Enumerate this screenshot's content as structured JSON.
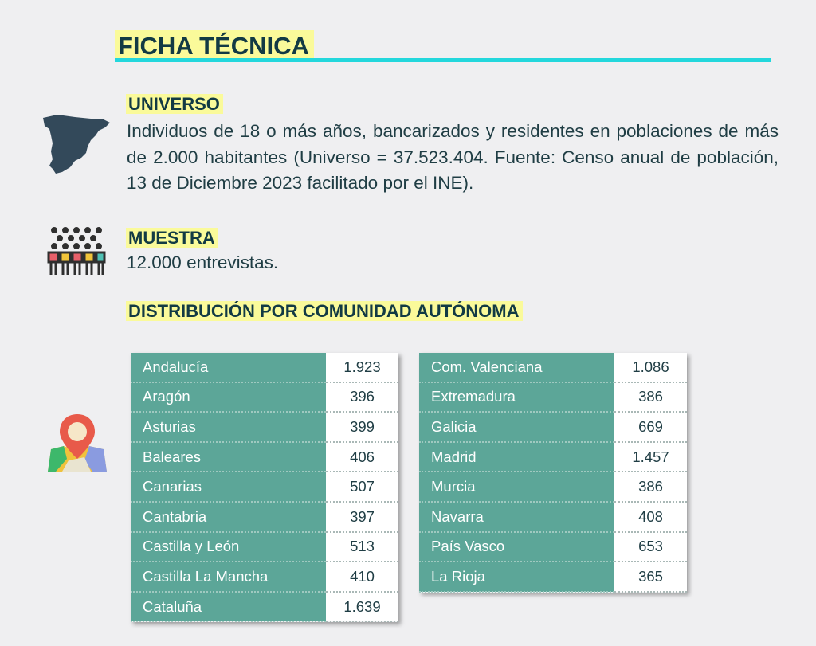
{
  "title": "FICHA TÉCNICA",
  "colors": {
    "accent_rule": "#23d7dc",
    "highlight": "#fafa9a",
    "table_header": "#5ca698",
    "text": "#1f3d44"
  },
  "universo": {
    "heading": "UNIVERSO",
    "text": "Individuos de 18 o más años, bancarizados y residentes en poblaciones de más de 2.000 habitantes (Universo = 37.523.404. Fuente: Censo anual de población, 13 de Diciembre 2023 facilitado por el INE).",
    "icon": "spain-map-icon"
  },
  "muestra": {
    "heading": "MUESTRA",
    "text": "12.000 entrevistas.",
    "icon": "people-icon"
  },
  "distribution": {
    "heading": "DISTRIBUCIÓN POR COMUNIDAD AUTÓNOMA",
    "icon": "map-pin-icon",
    "left": [
      {
        "name": "Andalucía",
        "value": "1.923"
      },
      {
        "name": "Aragón",
        "value": "396"
      },
      {
        "name": "Asturias",
        "value": "399"
      },
      {
        "name": "Baleares",
        "value": "406"
      },
      {
        "name": "Canarias",
        "value": "507"
      },
      {
        "name": "Cantabria",
        "value": "397"
      },
      {
        "name": "Castilla y León",
        "value": "513"
      },
      {
        "name": "Castilla La Mancha",
        "value": "410"
      },
      {
        "name": "Cataluña",
        "value": "1.639"
      }
    ],
    "right": [
      {
        "name": "Com. Valenciana",
        "value": "1.086"
      },
      {
        "name": "Extremadura",
        "value": "386"
      },
      {
        "name": "Galicia",
        "value": "669"
      },
      {
        "name": "Madrid",
        "value": "1.457"
      },
      {
        "name": "Murcia",
        "value": "386"
      },
      {
        "name": "Navarra",
        "value": "408"
      },
      {
        "name": "País Vasco",
        "value": "653"
      },
      {
        "name": "La Rioja",
        "value": "365"
      }
    ]
  }
}
